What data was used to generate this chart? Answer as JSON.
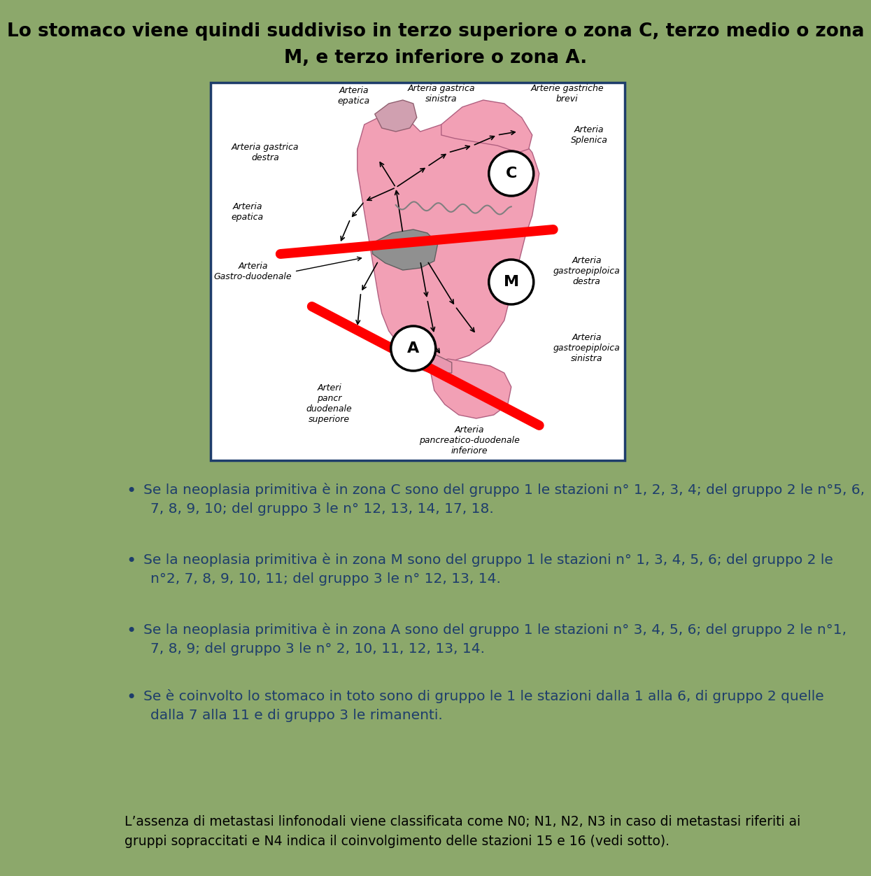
{
  "bg_color": "#8ca86b",
  "title_line1": "Lo stomaco viene quindi suddiviso in terzo superiore o zona C, terzo medio o zona",
  "title_line2": "M, e terzo inferiore o zona A.",
  "title_fontsize": 19,
  "title_color": "#000000",
  "bullet_color": "#1e3d6b",
  "footer_color": "#000000",
  "text_fontsize": 14.5,
  "footer_fontsize": 13.5,
  "image_border_color": "#1e3d6b",
  "image_bg": "#ffffff",
  "bullet1_line1": "Se la neoplasia primitiva è in zona C sono del gruppo 1 le stazioni n° 1, 2, 3, 4; del gruppo 2 le n°5, 6,",
  "bullet1_line2": "7, 8, 9, 10; del gruppo 3 le n° 12, 13, 14, 17, 18.",
  "bullet2_line1": "Se la neoplasia primitiva è in zona M sono del gruppo 1 le stazioni n° 1, 3, 4, 5, 6; del gruppo 2 le",
  "bullet2_line2": "n°2, 7, 8, 9, 10, 11; del gruppo 3 le n° 12, 13, 14.",
  "bullet3_line1": "Se la neoplasia primitiva è in zona A sono del gruppo 1 le stazioni n° 3, 4, 5, 6; del gruppo 2 le n°1,",
  "bullet3_line2": "7, 8, 9; del gruppo 3 le n° 2, 10, 11, 12, 13, 14.",
  "bullet4_line1": "Se è coinvolto lo stomaco in toto sono di gruppo le 1 le stazioni dalla 1 alla 6, di gruppo 2 quelle",
  "bullet4_line2": "dalla 7 alla 11 e di gruppo 3 le rimanenti.",
  "footer_line1": "L’assenza di metastasi linfonodali viene classificata come N0; N1, N2, N3 in caso di metastasi riferiti ai",
  "footer_line2": "gruppi sopraccitati e N4 indica il coinvolgimento delle stazioni 15 e 16 (vedi sotto)."
}
